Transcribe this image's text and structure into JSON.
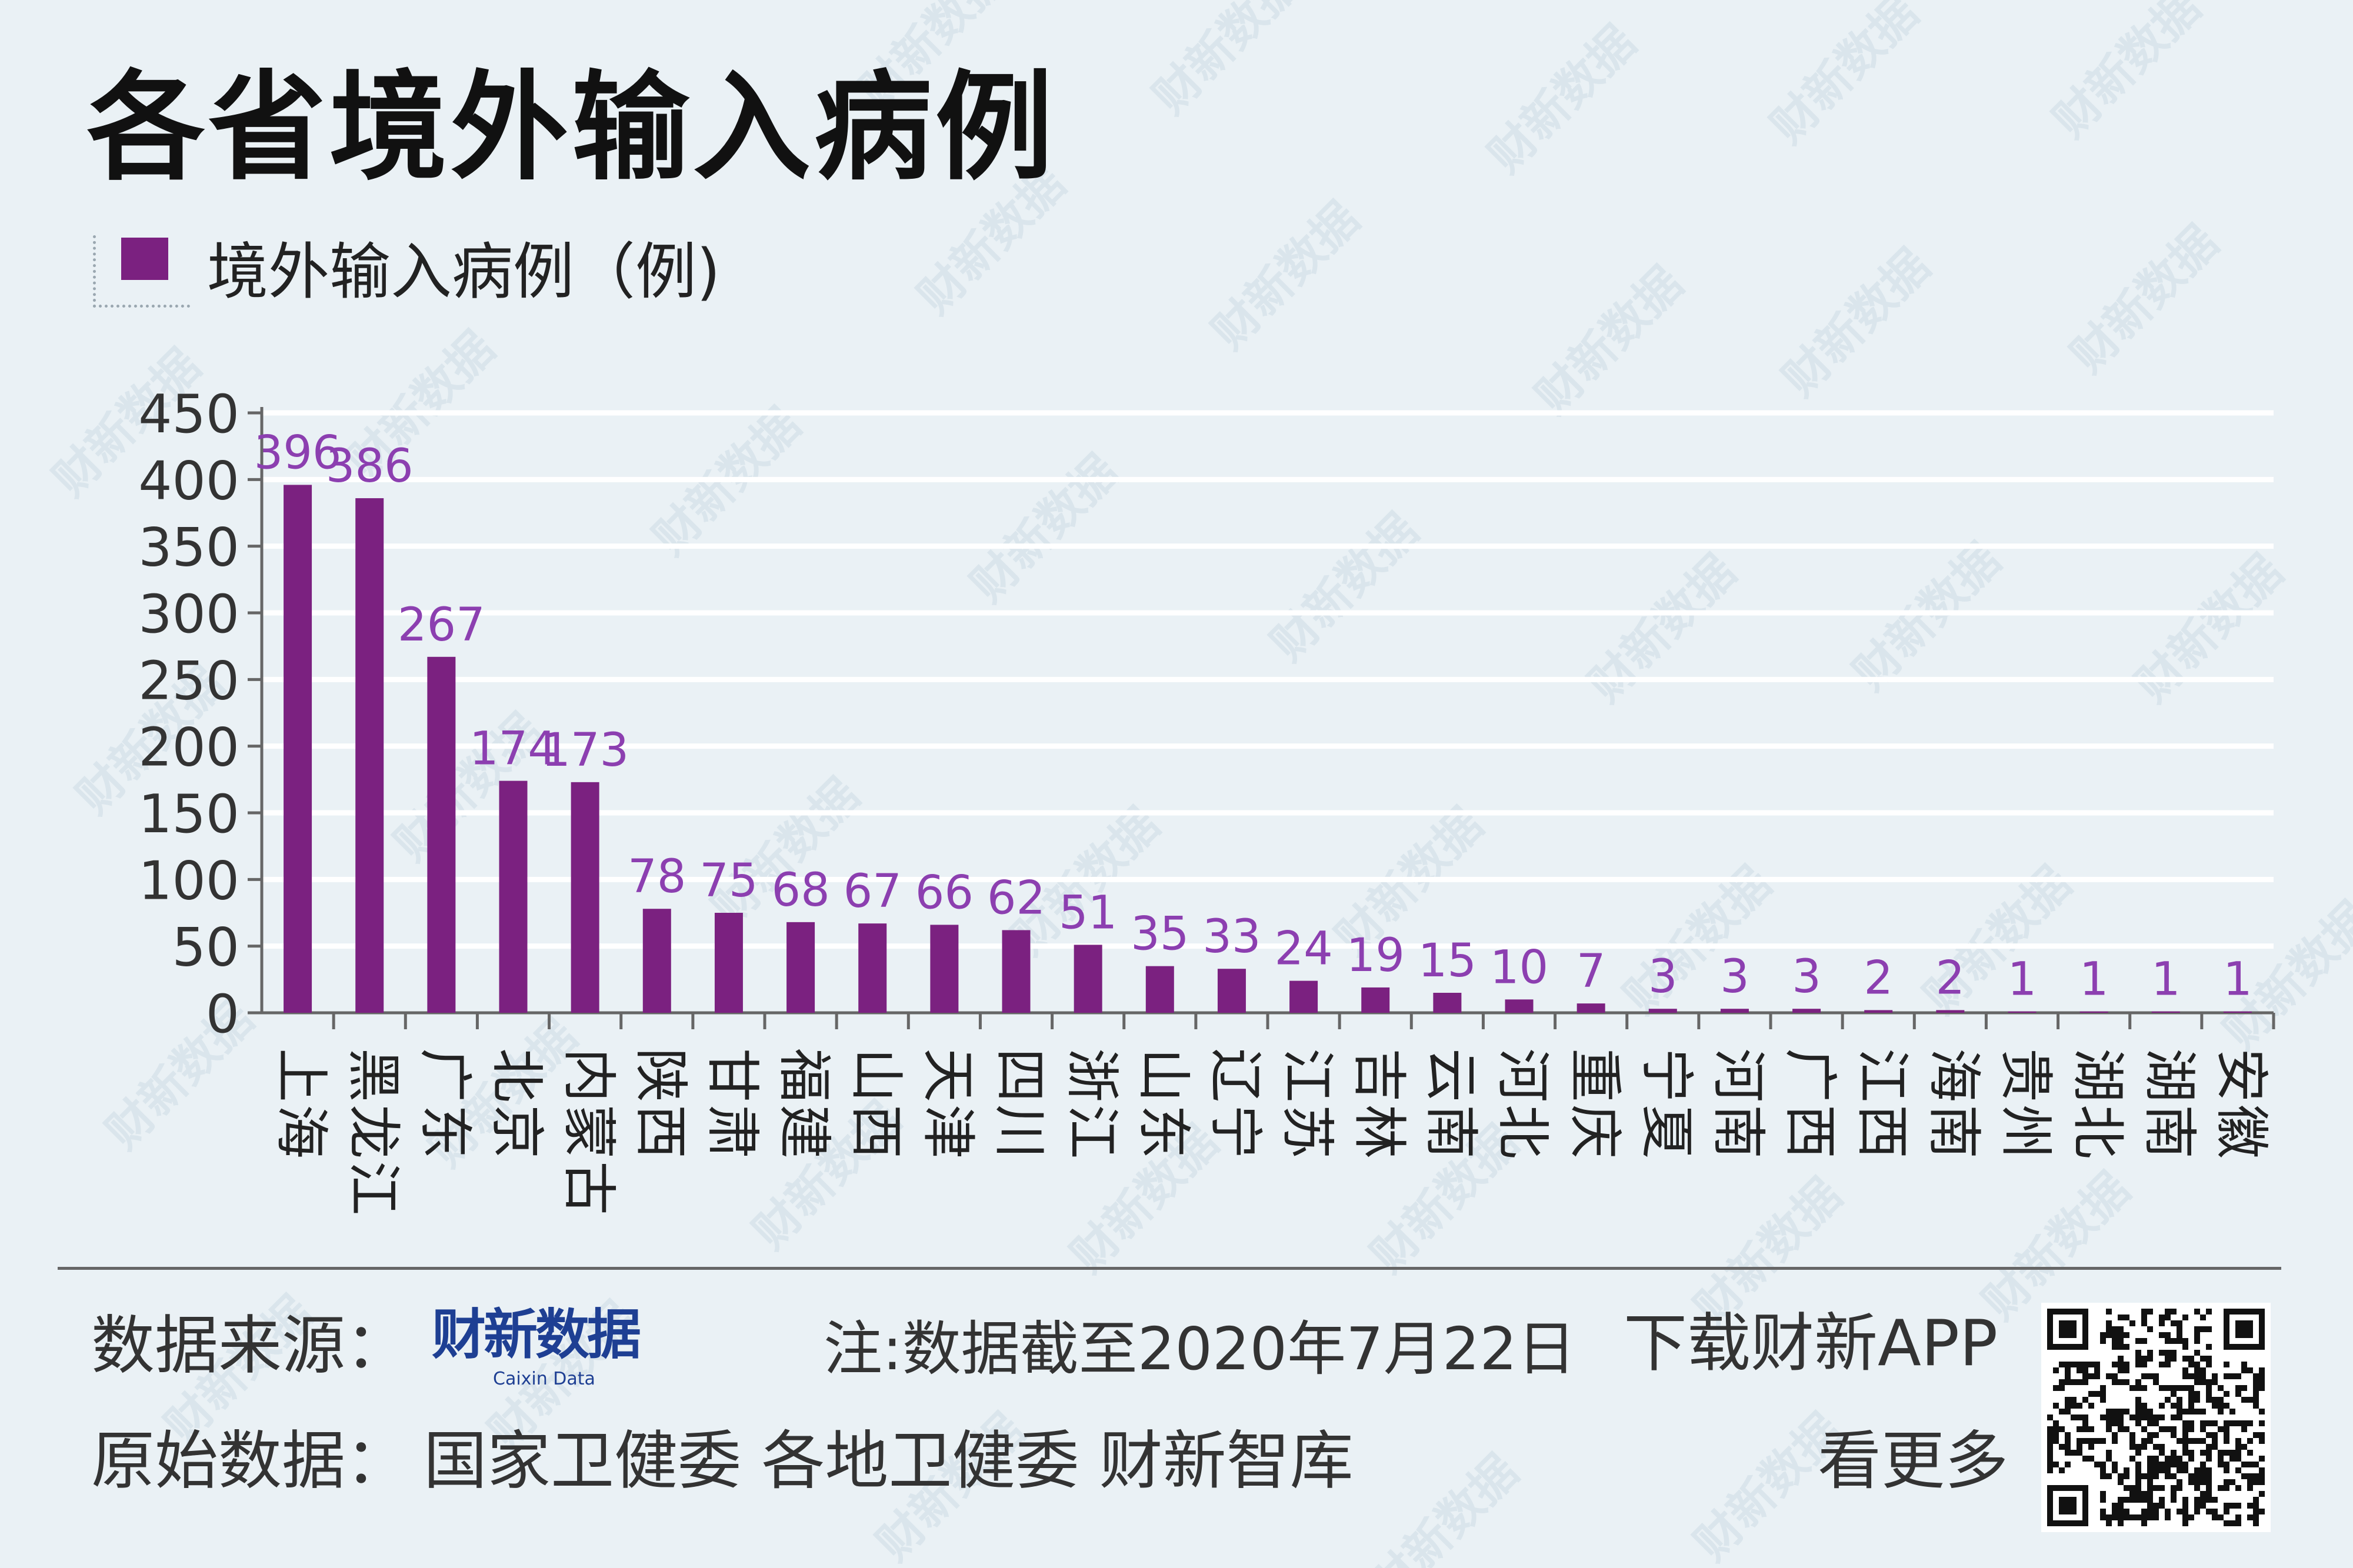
{
  "title": "各省境外输入病例",
  "footer": {
    "source_label": "数据来源：",
    "logo_text": "财新数据",
    "logo_subtext": "Caixin Data",
    "note": "注:数据截至2020年7月22日",
    "download": "下载财新APP",
    "see_more": "看更多",
    "raw_label": "原始数据：",
    "raw_sources": "国家卫健委 各地卫健委 财新智库"
  },
  "watermark": "财新数据",
  "colors": {
    "bar": "#7b2180",
    "label": "#8c3fb0",
    "background": "#eaf1f5",
    "grid": "#ffffff",
    "axis": "#666666"
  },
  "chart_data": {
    "type": "bar",
    "title": "各省境外输入病例",
    "legend": [
      "境外输入病例（例)"
    ],
    "legend_position": "top-left",
    "grid": true,
    "ylim": [
      0,
      450
    ],
    "yticks": [
      0,
      50,
      100,
      150,
      200,
      250,
      300,
      350,
      400,
      450
    ],
    "categories": [
      "上海",
      "黑龙江",
      "广东",
      "北京",
      "内蒙古",
      "陕西",
      "甘肃",
      "福建",
      "山西",
      "天津",
      "四川",
      "浙江",
      "山东",
      "辽宁",
      "江苏",
      "吉林",
      "云南",
      "河北",
      "重庆",
      "宁夏",
      "河南",
      "广西",
      "江西",
      "海南",
      "贵州",
      "湖北",
      "湖南",
      "安徽"
    ],
    "series": [
      {
        "name": "境外输入病例（例)",
        "values": [
          396,
          386,
          267,
          174,
          173,
          78,
          75,
          68,
          67,
          66,
          62,
          51,
          35,
          33,
          24,
          19,
          15,
          10,
          7,
          3,
          3,
          3,
          2,
          2,
          1,
          1,
          1,
          1
        ]
      }
    ]
  }
}
